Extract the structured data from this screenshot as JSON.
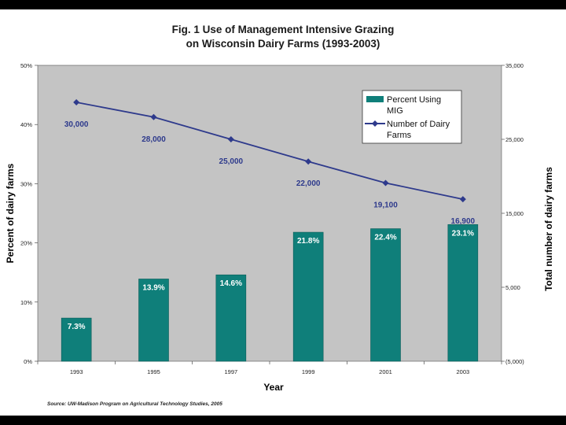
{
  "chart_data": {
    "type": "bar+line",
    "title_line1": "Fig. 1  Use of Management Intensive Grazing",
    "title_line2": "on Wisconsin Dairy Farms (1993-2003)",
    "xlabel": "Year",
    "ylabel_left": "Percent of dairy farms",
    "ylabel_right": "Total number of dairy farms",
    "categories": [
      "1993",
      "1995",
      "1997",
      "1999",
      "2001",
      "2003"
    ],
    "left_axis": {
      "min": 0,
      "max": 50,
      "ticks": [
        "0%",
        "10%",
        "20%",
        "30%",
        "40%",
        "50%"
      ]
    },
    "right_axis": {
      "min": -5000,
      "max": 35000,
      "ticks": [
        "(5,000)",
        "5,000",
        "15,000",
        "25,000",
        "35,000"
      ]
    },
    "series": [
      {
        "name": "Percent Using MIG",
        "type": "bar",
        "axis": "left",
        "color": "#0f7f7a",
        "values": [
          7.3,
          13.9,
          14.6,
          21.8,
          22.4,
          23.1
        ],
        "labels": [
          "7.3%",
          "13.9%",
          "14.6%",
          "21.8%",
          "22.4%",
          "23.1%"
        ]
      },
      {
        "name": "Number of Dairy Farms",
        "type": "line",
        "axis": "right",
        "color": "#2e3a8c",
        "values": [
          30000,
          28000,
          25000,
          22000,
          19100,
          16900
        ],
        "labels": [
          "30,000",
          "28,000",
          "25,000",
          "22,000",
          "19,100",
          "16,900"
        ]
      }
    ],
    "legend": [
      {
        "line1": "Percent Using",
        "line2": "MIG"
      },
      {
        "line1": "Number of Dairy",
        "line2": "Farms"
      }
    ],
    "legend_position": "top-right",
    "plot_background": "#c4c4c4",
    "source": "Source: UW-Madison Program on Agricultural Technology Studies, 2005"
  }
}
